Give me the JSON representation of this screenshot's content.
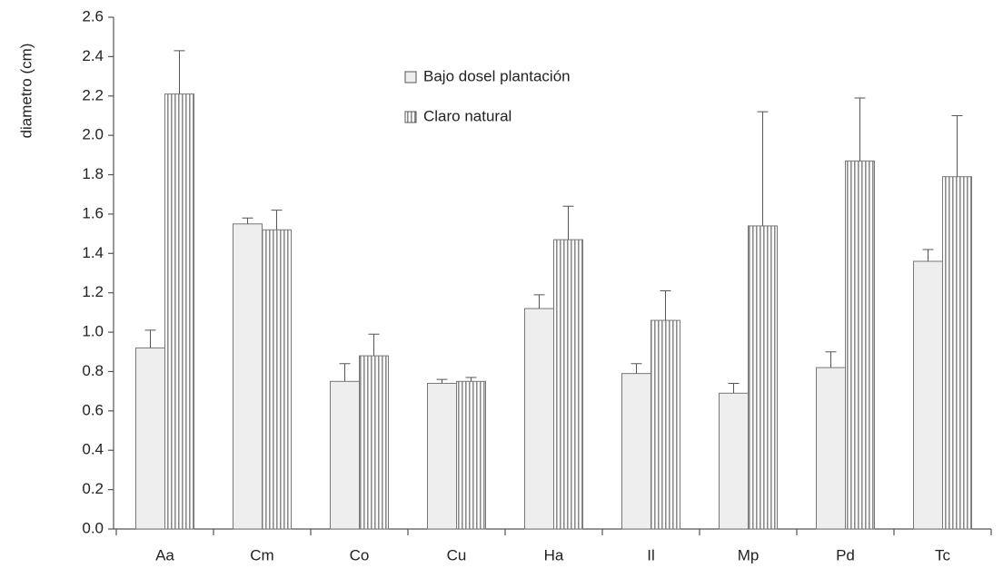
{
  "chart_data": {
    "type": "bar",
    "ylabel": "diametro (cm)",
    "categories": [
      "Aa",
      "Cm",
      "Co",
      "Cu",
      "Ha",
      "Il",
      "Mp",
      "Pd",
      "Tc"
    ],
    "series": [
      {
        "name": "Bajo dosel plantación",
        "color": "#eeeeee",
        "values": [
          0.92,
          1.55,
          0.75,
          0.74,
          1.12,
          0.79,
          0.69,
          0.82,
          1.36
        ],
        "errors": [
          0.09,
          0.03,
          0.09,
          0.02,
          0.07,
          0.05,
          0.05,
          0.08,
          0.06
        ]
      },
      {
        "name": "Claro natural",
        "color": "#8c8c8c",
        "pattern": "vertical-stripes",
        "values": [
          2.21,
          1.52,
          0.88,
          0.75,
          1.47,
          1.06,
          1.54,
          1.87,
          1.79
        ],
        "errors": [
          0.22,
          0.1,
          0.11,
          0.02,
          0.17,
          0.15,
          0.58,
          0.32,
          0.31
        ]
      }
    ],
    "ylim": [
      0,
      2.6
    ],
    "yticks": [
      {
        "value": 0,
        "label": "0.0"
      },
      0.2,
      0.4,
      0.6,
      0.8,
      {
        "value": 1,
        "label": "1.0"
      },
      1.2,
      1.4,
      1.6,
      1.8,
      {
        "value": 2,
        "label": "2.0"
      },
      2.2,
      2.4,
      2.6
    ],
    "legend": "top-center"
  }
}
